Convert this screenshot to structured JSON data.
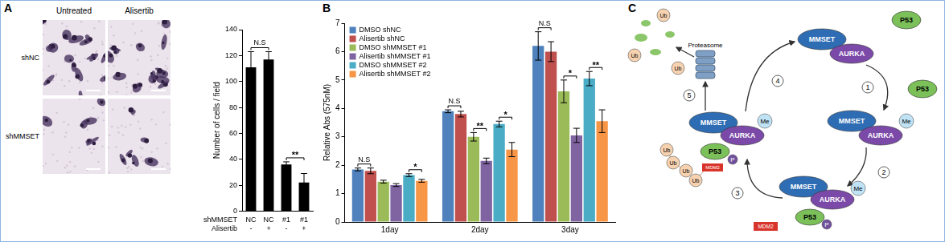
{
  "panel_labels": [
    "A",
    "B",
    "C"
  ],
  "micrographs": {
    "column_titles": [
      "Untreated",
      "Alisertib"
    ],
    "row_titles": [
      "shNC",
      "shMMSET"
    ]
  },
  "chart_data": [
    {
      "type": "bar",
      "y_label": "Number of cells / field",
      "categories": [
        [
          "NC",
          "-"
        ],
        [
          "NC",
          "+"
        ],
        [
          "#1",
          "-"
        ],
        [
          "#1",
          "+"
        ]
      ],
      "category_rows": [
        "shMMSET",
        "Alisertib"
      ],
      "values": [
        111,
        117,
        36,
        22
      ],
      "errors": [
        12,
        6,
        2,
        7
      ],
      "color": "#000000",
      "ylim": [
        0,
        140
      ],
      "yticks": [
        0,
        20,
        40,
        60,
        80,
        100,
        120,
        140
      ],
      "grid": false,
      "annotations": [
        {
          "between": [
            0,
            1
          ],
          "label": "N.S"
        },
        {
          "between": [
            2,
            3
          ],
          "label": "**"
        }
      ]
    },
    {
      "type": "bar",
      "y_label": "Relative Abs (575nM)",
      "categories": [
        "1day",
        "2day",
        "3day"
      ],
      "series": [
        {
          "name": "DMSO shNC",
          "color": "#4f81bd",
          "values": [
            1.85,
            3.9,
            6.2
          ],
          "errors": [
            0.05,
            0.05,
            0.5
          ]
        },
        {
          "name": "Alisertib shNC",
          "color": "#c0504d",
          "values": [
            1.8,
            3.8,
            6.0
          ],
          "errors": [
            0.1,
            0.1,
            0.35
          ]
        },
        {
          "name": "DMSO shMMSET #1",
          "color": "#9bbb59",
          "values": [
            1.42,
            3.0,
            4.6
          ],
          "errors": [
            0.05,
            0.15,
            0.4
          ]
        },
        {
          "name": "Alisertib shMMSET #1",
          "color": "#8064a2",
          "values": [
            1.3,
            2.15,
            3.05
          ],
          "errors": [
            0.05,
            0.1,
            0.25
          ]
        },
        {
          "name": "DMSO shMMSET #2",
          "color": "#4bacc6",
          "values": [
            1.65,
            3.45,
            5.05
          ],
          "errors": [
            0.05,
            0.1,
            0.25
          ]
        },
        {
          "name": "Alisertib shMMSET #2",
          "color": "#f79646",
          "values": [
            1.45,
            2.55,
            3.55
          ],
          "errors": [
            0.05,
            0.25,
            0.4
          ]
        }
      ],
      "ylim": [
        0,
        7
      ],
      "yticks": [
        0,
        1,
        2,
        3,
        4,
        5,
        6,
        7
      ],
      "grid": false,
      "legend": "top-left",
      "annotations": [
        {
          "category": "1day",
          "between": [
            "DMSO shNC",
            "Alisertib shNC"
          ],
          "label": "N.S"
        },
        {
          "category": "1day",
          "between": [
            "DMSO shMMSET #2",
            "Alisertib shMMSET #2"
          ],
          "label": "*"
        },
        {
          "category": "2day",
          "between": [
            "DMSO shNC",
            "Alisertib shNC"
          ],
          "label": "N.S"
        },
        {
          "category": "2day",
          "between": [
            "DMSO shMMSET #1",
            "Alisertib shMMSET #1"
          ],
          "label": "**"
        },
        {
          "category": "2day",
          "between": [
            "DMSO shMMSET #2",
            "Alisertib shMMSET #2"
          ],
          "label": "*"
        },
        {
          "category": "3day",
          "between": [
            "DMSO shNC",
            "Alisertib shNC"
          ],
          "label": "N.S"
        },
        {
          "category": "3day",
          "between": [
            "DMSO shMMSET #1",
            "Alisertib shMMSET #1"
          ],
          "label": "*"
        },
        {
          "category": "3day",
          "between": [
            "DMSO shMMSET #2",
            "Alisertib shMMSET #2"
          ],
          "label": "**"
        }
      ]
    }
  ],
  "diagram": {
    "labels": {
      "mmset": "MMSET",
      "aurka": "AURKA",
      "p53": "P53",
      "me": "Me",
      "p": "P",
      "ub": "Ub",
      "mdm2": "MDM2",
      "proteasome": "Proteasome"
    },
    "steps": [
      "1",
      "2",
      "3",
      "4",
      "5"
    ]
  }
}
